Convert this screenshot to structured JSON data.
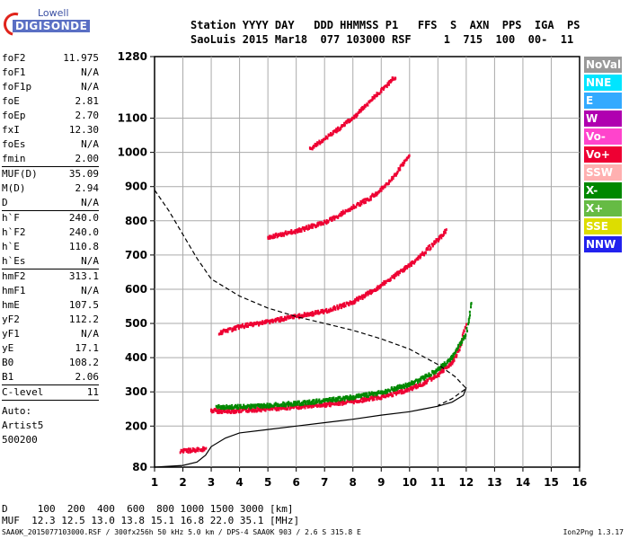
{
  "logo": {
    "top": "Lowell",
    "main": "DIGISONDE"
  },
  "header": {
    "line1": "Station YYYY DAY   DDD HHMMSS P1   FFS  S  AXN  PPS  IGA  PS",
    "line2": "SaoLuis 2015 Mar18  077 103000 RSF     1  715  100  00-  11"
  },
  "parameter_groups": [
    [
      {
        "k": "foF2",
        "v": "11.975"
      },
      {
        "k": "foF1",
        "v": "N/A"
      },
      {
        "k": "foF1p",
        "v": "N/A"
      },
      {
        "k": "foE",
        "v": "2.81"
      },
      {
        "k": "foEp",
        "v": "2.70"
      },
      {
        "k": "fxI",
        "v": "12.30"
      },
      {
        "k": "foEs",
        "v": "N/A"
      },
      {
        "k": "fmin",
        "v": "2.00"
      }
    ],
    [
      {
        "k": "MUF(D)",
        "v": "35.09"
      },
      {
        "k": "M(D)",
        "v": "2.94"
      },
      {
        "k": "D",
        "v": "N/A"
      }
    ],
    [
      {
        "k": "h`F",
        "v": "240.0"
      },
      {
        "k": "h`F2",
        "v": "240.0"
      },
      {
        "k": "h`E",
        "v": "110.8"
      },
      {
        "k": "h`Es",
        "v": "N/A"
      }
    ],
    [
      {
        "k": "hmF2",
        "v": "313.1"
      },
      {
        "k": "hmF1",
        "v": "N/A"
      },
      {
        "k": "hmE",
        "v": "107.5"
      },
      {
        "k": "yF2",
        "v": "112.2"
      },
      {
        "k": "yF1",
        "v": "N/A"
      },
      {
        "k": "yE",
        "v": "17.1"
      },
      {
        "k": "B0",
        "v": "108.2"
      },
      {
        "k": "B1",
        "v": "2.06"
      }
    ],
    [
      {
        "k": "C-level",
        "v": "11"
      }
    ]
  ],
  "autoscaling": [
    "Auto:",
    "Artist5",
    "500200"
  ],
  "legend": [
    {
      "label": "NoVal",
      "color": "#999999"
    },
    {
      "label": "NNE",
      "color": "#00e5ff"
    },
    {
      "label": "E",
      "color": "#33aaff"
    },
    {
      "label": "W",
      "color": "#b000b0"
    },
    {
      "label": "Vo-",
      "color": "#ff44cc"
    },
    {
      "label": "Vo+",
      "color": "#ee0033"
    },
    {
      "label": "SSW",
      "color": "#ffb0b0"
    },
    {
      "label": "X-",
      "color": "#008800"
    },
    {
      "label": "X+",
      "color": "#66bb44"
    },
    {
      "label": "SSE",
      "color": "#dddd00"
    },
    {
      "label": "NNW",
      "color": "#2222ee"
    }
  ],
  "footer": {
    "line1": "D     100  200  400  600  800 1000 1500 3000 [km]",
    "line2": "MUF  12.3 12.5 13.0 13.8 15.1 16.8 22.0 35.1 [MHz]"
  },
  "footnote": "SAA0K_2015077103000.RSF / 300fx256h 50 kHz 5.0 km / DPS-4 SAA0K 903 / 2.6 S 315.8 E",
  "version": "Ion2Png 1.3.17",
  "chart_data": {
    "type": "scatter",
    "xlim": [
      1,
      16
    ],
    "ylim": [
      80,
      1280
    ],
    "x_ticks": [
      1,
      2,
      3,
      4,
      5,
      6,
      7,
      8,
      9,
      10,
      11,
      12,
      13,
      14,
      15,
      16
    ],
    "y_ticks": [
      80,
      200,
      300,
      400,
      500,
      600,
      700,
      800,
      900,
      1000,
      1100,
      1280
    ],
    "grid": true,
    "series": [
      {
        "color": "#ee0033",
        "x": [
          3.0,
          3.5,
          4.0,
          5.0,
          6.0,
          7.0,
          8.0,
          9.0,
          9.5,
          10.0,
          10.5,
          11.0,
          11.5,
          11.8,
          12.0
        ],
        "y": [
          245,
          243,
          245,
          250,
          256,
          262,
          272,
          285,
          295,
          308,
          325,
          350,
          385,
          430,
          500
        ]
      },
      {
        "color": "#ee0033",
        "x": [
          1.9,
          2.2,
          2.5,
          2.8
        ],
        "y": [
          126,
          128,
          130,
          134
        ]
      },
      {
        "color": "#ee0033",
        "x": [
          3.3,
          4.0,
          5.0,
          6.0,
          7.0,
          8.0,
          8.5,
          9.0,
          9.5,
          10.0,
          10.5,
          11.0,
          11.3
        ],
        "y": [
          472,
          490,
          505,
          520,
          535,
          562,
          585,
          610,
          640,
          670,
          705,
          745,
          770
        ]
      },
      {
        "color": "#ee0033",
        "x": [
          5.0,
          6.0,
          7.0,
          7.5,
          8.0,
          8.5,
          9.0,
          9.5,
          10.0
        ],
        "y": [
          752,
          770,
          795,
          815,
          840,
          860,
          890,
          935,
          990
        ]
      },
      {
        "color": "#ee0033",
        "x": [
          6.5,
          7.0,
          7.5,
          8.0,
          8.5,
          9.0,
          9.5
        ],
        "y": [
          1010,
          1040,
          1070,
          1100,
          1140,
          1180,
          1220
        ]
      },
      {
        "color": "#008800",
        "x": [
          3.2,
          4.0,
          5.0,
          6.0,
          7.0,
          8.0,
          9.0,
          9.5,
          10.0,
          10.5,
          11.0,
          11.5,
          12.0,
          12.2
        ],
        "y": [
          255,
          256,
          260,
          266,
          274,
          284,
          298,
          310,
          322,
          340,
          365,
          400,
          470,
          560
        ]
      }
    ],
    "true_height_profile": {
      "x": [
        1.0,
        2.0,
        2.5,
        2.8,
        3.0,
        3.5,
        4.0,
        5.0,
        6.0,
        7.0,
        8.0,
        9.0,
        10.0,
        10.5,
        11.0,
        11.5,
        11.9,
        12.0
      ],
      "y": [
        80,
        85,
        95,
        115,
        140,
        165,
        180,
        190,
        200,
        210,
        220,
        232,
        242,
        250,
        258,
        270,
        290,
        313.1
      ]
    },
    "plasma_frequency_profile": {
      "x": [
        1.0,
        1.5,
        2.0,
        2.5,
        3.0,
        4.0,
        5.0,
        6.0,
        7.0,
        8.0,
        9.0,
        10.0,
        11.0,
        11.6,
        12.0,
        11.5,
        11.0
      ],
      "y": [
        890,
        830,
        760,
        690,
        630,
        580,
        545,
        520,
        500,
        480,
        455,
        425,
        380,
        345,
        310,
        280,
        260
      ]
    }
  }
}
